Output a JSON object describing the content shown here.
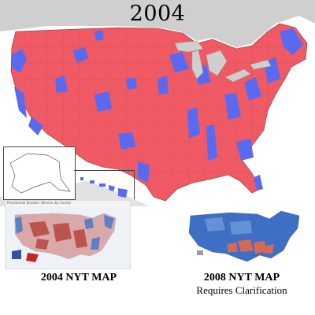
{
  "title": "2004",
  "captions": {
    "map_2004": "2004 NYT MAP",
    "map_2008": "2008 NYT MAP",
    "map_2008_note": "Requires Clarification"
  },
  "nyt_2004_header": "Presidential Election: Winners by County",
  "colors": {
    "republican": "#f05a64",
    "democrat": "#5a6af0",
    "water": "#cfcfcf",
    "background": "#ffffff"
  }
}
